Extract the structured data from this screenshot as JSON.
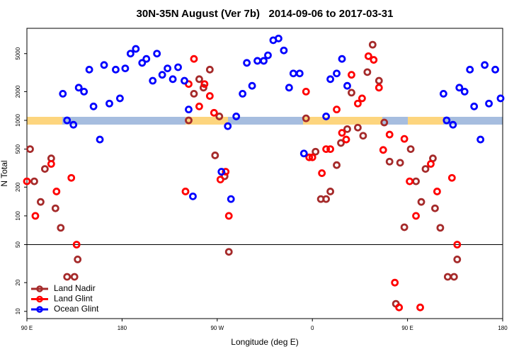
{
  "chart_data": {
    "type": "scatter",
    "title": "30N-35N August (Ver 7b)   2014-09-06 to 2017-03-31",
    "xlabel": "Longitude (deg E)",
    "ylabel": "N Total",
    "xlim": [
      90,
      540
    ],
    "xticks": [
      {
        "value": 90,
        "label": "90 E"
      },
      180,
      {
        "value": 270,
        "label": "90 W"
      },
      {
        "value": 360,
        "label": "0"
      },
      {
        "value": 450,
        "label": "90 E"
      },
      {
        "value": 540,
        "label": "180"
      }
    ],
    "ylim": [
      8.4,
      9200
    ],
    "yscale": "log",
    "yticks": [
      10,
      20,
      50,
      100,
      200,
      500,
      1000,
      2000,
      5000
    ],
    "hlines": [
      50
    ],
    "legend": "lower left",
    "series": [
      {
        "name": "Land Nadir",
        "color": "#a52a2a",
        "x": [
          93,
          97,
          103,
          107,
          113,
          117,
          122,
          128,
          135,
          138,
          243,
          248,
          253,
          257,
          263,
          268,
          277,
          281,
          272,
          354,
          363,
          368,
          373,
          377,
          383,
          387,
          393,
          397,
          403,
          408,
          412,
          417,
          423,
          428,
          433,
          443,
          439,
          447,
          453,
          458,
          463,
          467,
          474,
          476,
          481,
          488,
          494,
          497
        ],
        "values": [
          500,
          230,
          140,
          310,
          400,
          120,
          75,
          23,
          23,
          35,
          1000,
          1900,
          2700,
          2200,
          3400,
          430,
          260,
          42,
          1100,
          1050,
          470,
          150,
          150,
          180,
          340,
          580,
          810,
          1950,
          840,
          690,
          3200,
          6200,
          2600,
          950,
          370,
          360,
          12,
          76,
          500,
          230,
          140,
          310,
          400,
          120,
          75,
          23,
          23,
          35
        ]
      },
      {
        "name": "Land Glint",
        "color": "#ff0000",
        "x": [
          90,
          98,
          113,
          118,
          132,
          137,
          243,
          248,
          253,
          258,
          263,
          267,
          273,
          278,
          281,
          240,
          354,
          357,
          360,
          369,
          373,
          377,
          383,
          388,
          392,
          397,
          403,
          407,
          413,
          418,
          423,
          427,
          433,
          438,
          442,
          447,
          452,
          458,
          462,
          472,
          478,
          492,
          497
        ],
        "values": [
          230,
          100,
          350,
          180,
          250,
          50,
          2400,
          4400,
          1400,
          2400,
          1800,
          1200,
          240,
          290,
          100,
          180,
          2000,
          410,
          410,
          280,
          500,
          500,
          1300,
          740,
          630,
          3000,
          1500,
          1700,
          4700,
          4300,
          2200,
          490,
          710,
          20,
          11,
          640,
          230,
          100,
          11,
          350,
          180,
          250,
          50
        ]
      },
      {
        "name": "Ocean Glint",
        "color": "#0000ff",
        "x": [
          124,
          128,
          134,
          139,
          144,
          149,
          153,
          159,
          163,
          168,
          174,
          178,
          183,
          188,
          193,
          199,
          203,
          209,
          213,
          218,
          223,
          228,
          233,
          239,
          243,
          247,
          274,
          280,
          283,
          288,
          294,
          298,
          303,
          308,
          314,
          318,
          323,
          328,
          333,
          338,
          342,
          348,
          352,
          373,
          377,
          383,
          388,
          393,
          484,
          487,
          493,
          499,
          504,
          509,
          513,
          519,
          523,
          527,
          533,
          538
        ],
        "values": [
          1900,
          1000,
          900,
          2200,
          2000,
          3400,
          1400,
          630,
          3800,
          1500,
          3400,
          1700,
          3500,
          5000,
          5600,
          4000,
          4400,
          2600,
          5000,
          3000,
          3500,
          2700,
          3600,
          2600,
          1300,
          160,
          290,
          870,
          150,
          1100,
          1900,
          4000,
          2300,
          4200,
          4200,
          4800,
          6900,
          7200,
          5400,
          2200,
          3100,
          3100,
          450,
          1100,
          2700,
          3100,
          4400,
          2300,
          1900,
          1000,
          900,
          2200,
          2000,
          3400,
          1400,
          630,
          3800,
          1500,
          3400,
          1700
        ]
      }
    ]
  }
}
